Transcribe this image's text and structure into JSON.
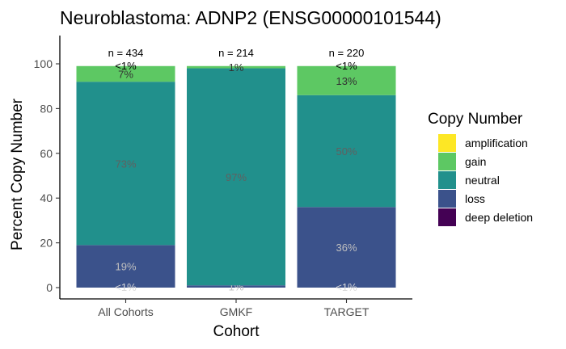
{
  "chart_data": {
    "type": "bar",
    "stacked": true,
    "title": "Neuroblastoma: ADNP2 (ENSG00000101544)",
    "xlabel": "Cohort",
    "ylabel": "Percent Copy Number",
    "ylim": [
      0,
      100
    ],
    "yticks": [
      0,
      20,
      40,
      60,
      80,
      100
    ],
    "grid": false,
    "legend_position": "right",
    "legend_title": "Copy Number",
    "categories": [
      "All Cohorts",
      "GMKF",
      "TARGET"
    ],
    "n_labels": [
      "n = 434",
      "n = 214",
      "n = 220"
    ],
    "series": [
      {
        "name": "deep deletion",
        "color": "#440154",
        "values": [
          0,
          0,
          0
        ]
      },
      {
        "name": "loss",
        "color": "#3B528B",
        "values": [
          19,
          1,
          36
        ],
        "labels": [
          "19%",
          "1%",
          "36%"
        ]
      },
      {
        "name": "neutral",
        "color": "#21908C",
        "values": [
          73,
          97,
          50
        ],
        "labels": [
          "73%",
          "97%",
          "50%"
        ]
      },
      {
        "name": "gain",
        "color": "#5DC863",
        "values": [
          7,
          1,
          13
        ],
        "labels": [
          "7%",
          "1%",
          "13%"
        ]
      },
      {
        "name": "amplification",
        "color": "#FDE725",
        "values": [
          0,
          0,
          0
        ]
      }
    ],
    "extra_labels": [
      {
        "category": "All Cohorts",
        "text": "<1%",
        "at": 0.3,
        "color": "#d9d9d9"
      },
      {
        "category": "All Cohorts",
        "text": "<1%",
        "at": 99.2,
        "color": "#000000"
      },
      {
        "category": "TARGET",
        "text": "<1%",
        "at": 0.3,
        "color": "#d9d9d9"
      },
      {
        "category": "TARGET",
        "text": "<1%",
        "at": 99.2,
        "color": "#000000"
      }
    ],
    "legend_order": [
      "amplification",
      "gain",
      "neutral",
      "loss",
      "deep deletion"
    ]
  }
}
